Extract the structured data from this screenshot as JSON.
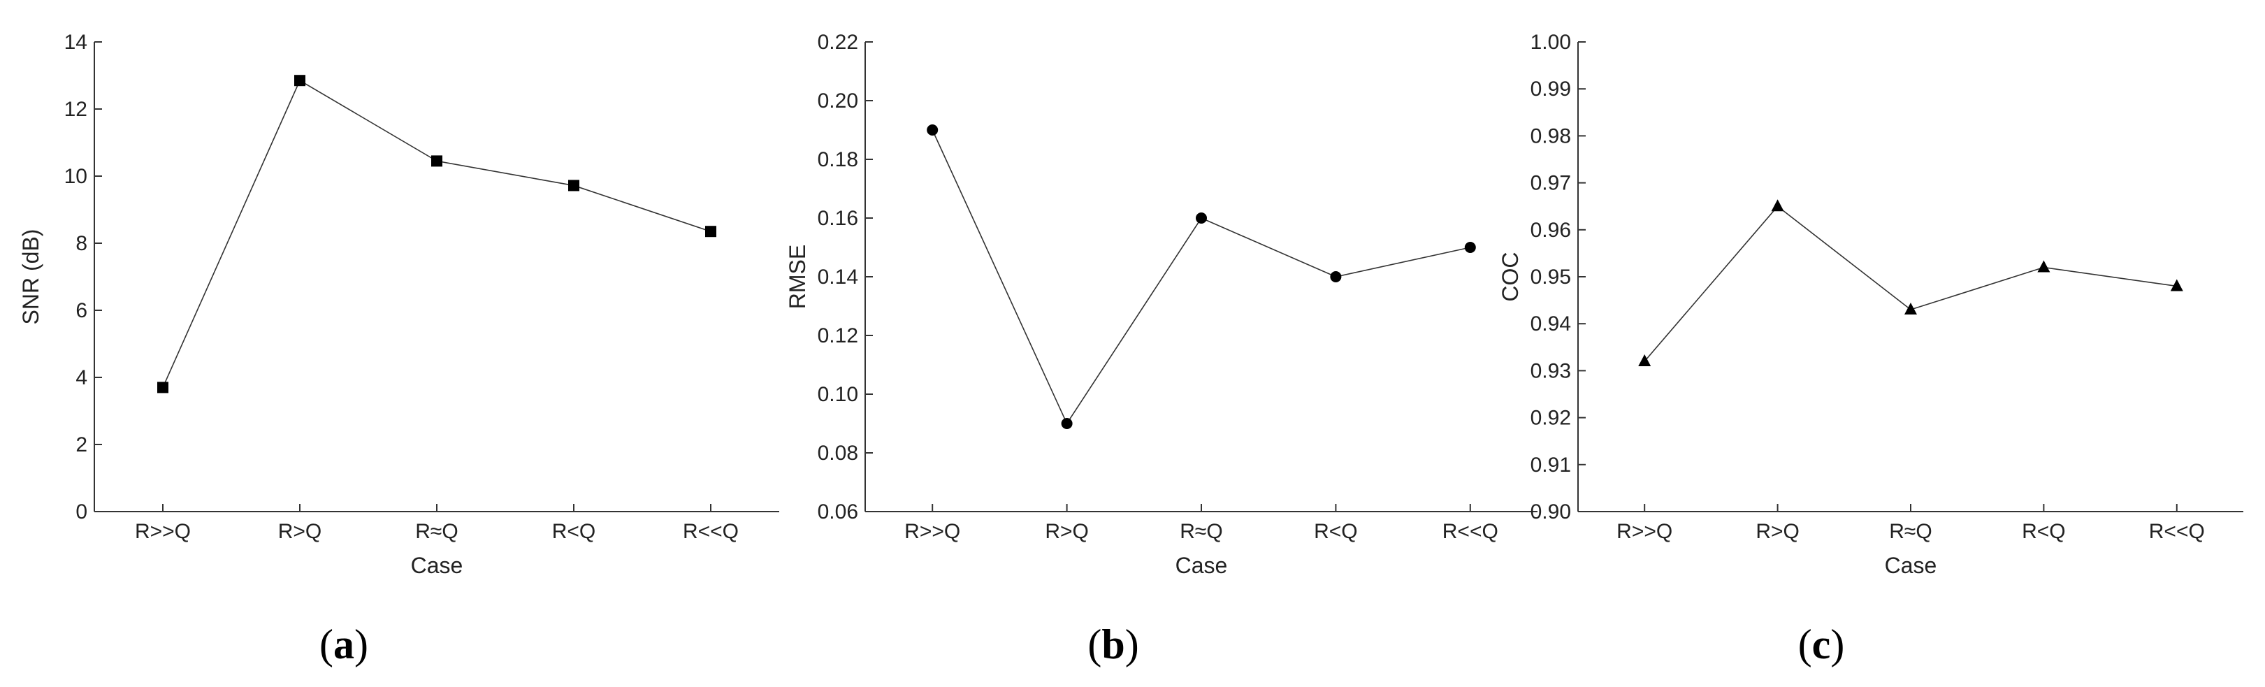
{
  "chart_data": [
    {
      "type": "line",
      "panel": "a",
      "caption": {
        "open": "(",
        "letter": "a",
        "close": ")"
      },
      "categories": [
        "R>>Q",
        "R>Q",
        "R≈Q",
        "R<Q",
        "R<<Q"
      ],
      "values": [
        3.7,
        12.85,
        10.45,
        9.72,
        8.35
      ],
      "marker": "square",
      "xlabel": "Case",
      "ylabel": "SNR (dB)",
      "ylim": [
        0,
        14
      ],
      "yticks": [
        0,
        2,
        4,
        6,
        8,
        10,
        12,
        14
      ],
      "ytick_labels": [
        "0",
        "2",
        "4",
        "6",
        "8",
        "10",
        "12",
        "14"
      ],
      "grid": false,
      "legend": "none"
    },
    {
      "type": "line",
      "panel": "b",
      "caption": {
        "open": "(",
        "letter": "b",
        "close": ")"
      },
      "categories": [
        "R>>Q",
        "R>Q",
        "R≈Q",
        "R<Q",
        "R<<Q"
      ],
      "values": [
        0.19,
        0.09,
        0.16,
        0.14,
        0.15
      ],
      "marker": "circle",
      "xlabel": "Case",
      "ylabel": "RMSE",
      "ylim": [
        0.06,
        0.22
      ],
      "yticks": [
        0.06,
        0.08,
        0.1,
        0.12,
        0.14,
        0.16,
        0.18,
        0.2,
        0.22
      ],
      "ytick_labels": [
        "0.06",
        "0.08",
        "0.10",
        "0.12",
        "0.14",
        "0.16",
        "0.18",
        "0.20",
        "0.22"
      ],
      "grid": false,
      "legend": "none"
    },
    {
      "type": "line",
      "panel": "c",
      "caption": {
        "open": "(",
        "letter": "c",
        "close": ")"
      },
      "categories": [
        "R>>Q",
        "R>Q",
        "R≈Q",
        "R<Q",
        "R<<Q"
      ],
      "values": [
        0.932,
        0.965,
        0.943,
        0.952,
        0.948
      ],
      "marker": "triangle",
      "xlabel": "Case",
      "ylabel": "COC",
      "ylim": [
        0.9,
        1.0
      ],
      "yticks": [
        0.9,
        0.91,
        0.92,
        0.93,
        0.94,
        0.95,
        0.96,
        0.97,
        0.98,
        0.99,
        1.0
      ],
      "ytick_labels": [
        "0.90",
        "0.91",
        "0.92",
        "0.93",
        "0.94",
        "0.95",
        "0.96",
        "0.97",
        "0.98",
        "0.99",
        "1.00"
      ],
      "grid": false,
      "legend": "none"
    }
  ]
}
